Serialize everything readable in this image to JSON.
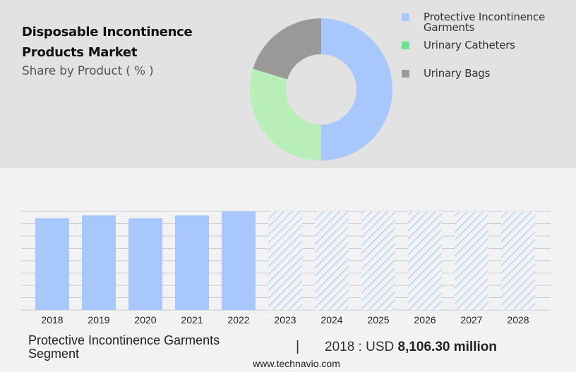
{
  "header": {
    "title_line1": "Disposable Incontinence",
    "title_line2": "Products Market",
    "subtitle": "Share by Product ( % )"
  },
  "colors": {
    "top_panel_bg": "#e2e2e2",
    "bottom_panel_bg": "#f2f2f4",
    "protective_garments": "#a8c8fc",
    "urinary_catheters_legend": "#6fe08f",
    "urinary_catheters_slice": "#b8eeb8",
    "urinary_bags": "#999999",
    "gridline": "#c8c8c8"
  },
  "legend": {
    "items": [
      {
        "label_line1": "Protective Incontinence",
        "label_line2": "Garments",
        "color": "#a8c8fc"
      },
      {
        "label_line1": "Urinary Catheters",
        "label_line2": "",
        "color": "#6fe08f"
      },
      {
        "label_line1": "Urinary Bags",
        "label_line2": "",
        "color": "#999999"
      }
    ]
  },
  "footer": {
    "segment_line1": "Protective Incontinence Garments",
    "segment_line2": "Segment",
    "divider": "|",
    "value_prefix": "2018 : USD ",
    "value_bold": "8,106.30 million",
    "url": "www.technavio.com"
  },
  "chart_data": [
    {
      "type": "pie",
      "variant": "donut",
      "title": "Disposable Incontinence Products Market",
      "subtitle": "Share by Product ( % )",
      "categories": [
        "Protective Incontinence Garments",
        "Urinary Catheters",
        "Urinary Bags"
      ],
      "values": [
        50,
        29.7,
        20.3
      ],
      "colors": [
        "#a8c8fc",
        "#b8eeb8",
        "#999999"
      ],
      "legend_position": "right"
    },
    {
      "type": "bar",
      "title": "Protective Incontinence Garments Segment",
      "categories": [
        "2018",
        "2019",
        "2020",
        "2021",
        "2022",
        "2023",
        "2024",
        "2025",
        "2026",
        "2027",
        "2028"
      ],
      "values": [
        8106.3,
        8400,
        8106.3,
        8400,
        8680,
        8680,
        8680,
        8680,
        8680,
        8680,
        8680
      ],
      "relative_heights": [
        0.93,
        0.96,
        0.93,
        0.96,
        1.0,
        1.0,
        1.0,
        1.0,
        1.0,
        1.0,
        1.0
      ],
      "forecast_from": "2023",
      "forecast_style": "hatched",
      "xlabel": "",
      "ylabel": "",
      "grid": true,
      "y_tick_labels_visible": false,
      "annotation": "2018 : USD 8,106.30 million"
    }
  ]
}
